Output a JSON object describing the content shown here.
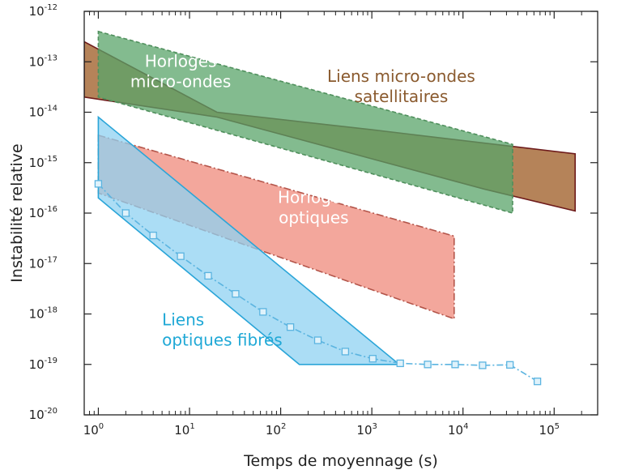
{
  "chart_data": {
    "type": "area",
    "title": "",
    "xlabel": "Temps de moyennage (s)",
    "ylabel": "Instabilité relative",
    "x_scale": "log",
    "y_scale": "log",
    "xlim": [
      0.7,
      300000
    ],
    "ylim": [
      1e-20,
      1e-12
    ],
    "x_tick_labels": [
      {
        "base": "10",
        "exp": "0"
      },
      {
        "base": "10",
        "exp": "1"
      },
      {
        "base": "10",
        "exp": "2"
      },
      {
        "base": "10",
        "exp": "3"
      },
      {
        "base": "10",
        "exp": "4"
      },
      {
        "base": "10",
        "exp": "5"
      }
    ],
    "y_tick_labels": [
      {
        "base": "10",
        "exp": "-12"
      },
      {
        "base": "10",
        "exp": "-13"
      },
      {
        "base": "10",
        "exp": "-14"
      },
      {
        "base": "10",
        "exp": "-15"
      },
      {
        "base": "10",
        "exp": "-16"
      },
      {
        "base": "10",
        "exp": "-17"
      },
      {
        "base": "10",
        "exp": "-18"
      },
      {
        "base": "10",
        "exp": "-19"
      },
      {
        "base": "10",
        "exp": "-20"
      }
    ],
    "regions": [
      {
        "label_lines": [
          "Liens micro-ondes",
          "satellitaires"
        ],
        "label_color": "#8a5a2e",
        "fill": "#9c5a22",
        "stroke": "#6e1b1b",
        "upper": [
          [
            0.7,
            2.5e-13
          ],
          [
            20,
            1e-14
          ],
          [
            1000,
            4.5e-15
          ],
          [
            170000,
            1.5e-15
          ]
        ],
        "lower": [
          [
            0.7,
            2e-14
          ],
          [
            20,
            8e-15
          ],
          [
            17000,
            3e-16
          ],
          [
            170000,
            1.1e-16
          ]
        ],
        "label_anchor": [
          2100,
          4e-14
        ]
      },
      {
        "label_lines": [
          "Horloges",
          "micro-ondes"
        ],
        "label_color": "#ffffff",
        "fill": "#5aa46a",
        "stroke": "#4f8f5c",
        "upper": [
          [
            1,
            4e-13
          ],
          [
            35000,
            2.3e-15
          ]
        ],
        "lower": [
          [
            1,
            2e-14
          ],
          [
            35000,
            1e-16
          ]
        ],
        "label_anchor": [
          8,
          8e-14
        ]
      },
      {
        "label_lines": [
          "Horloges",
          "optiques"
        ],
        "label_color": "#ffffff",
        "fill": "#ef8a7b",
        "stroke": "#b4554a",
        "upper": [
          [
            1,
            3.5e-15
          ],
          [
            8000,
            3.5e-17
          ]
        ],
        "lower": [
          [
            1,
            2.5e-16
          ],
          [
            8000,
            8e-19
          ]
        ],
        "label_anchor": [
          230,
          1.6e-16
        ]
      },
      {
        "label_lines": [
          "Liens",
          "optiques fibrés"
        ],
        "label_color": "#1fa8d6",
        "fill": "#8fd2f2",
        "stroke": "#2aa5d8",
        "upper": [
          [
            1,
            8e-15
          ],
          [
            2000,
            1e-19
          ],
          [
            2000,
            1e-19
          ]
        ],
        "lower": [
          [
            1,
            2e-16
          ],
          [
            160,
            1e-19
          ],
          [
            2000,
            1e-19
          ]
        ],
        "label_anchor": [
          5,
          6e-19
        ]
      }
    ],
    "series": [
      {
        "name": "",
        "style": "dash-dot with square markers",
        "color": "#5bb4e0",
        "x": [
          1,
          2,
          4,
          8,
          16,
          32,
          64,
          128,
          256,
          512,
          1024,
          2048,
          4096,
          8192,
          16384,
          32768,
          65536
        ],
        "y": [
          3.8e-16,
          1e-16,
          3.6e-17,
          1.4e-17,
          5.7e-18,
          2.5e-18,
          1.1e-18,
          5.5e-19,
          3e-19,
          1.8e-19,
          1.3e-19,
          1.05e-19,
          1e-19,
          1e-19,
          9.6e-20,
          9.8e-20,
          4.6e-20
        ]
      }
    ],
    "grid": false,
    "legend": "none"
  }
}
